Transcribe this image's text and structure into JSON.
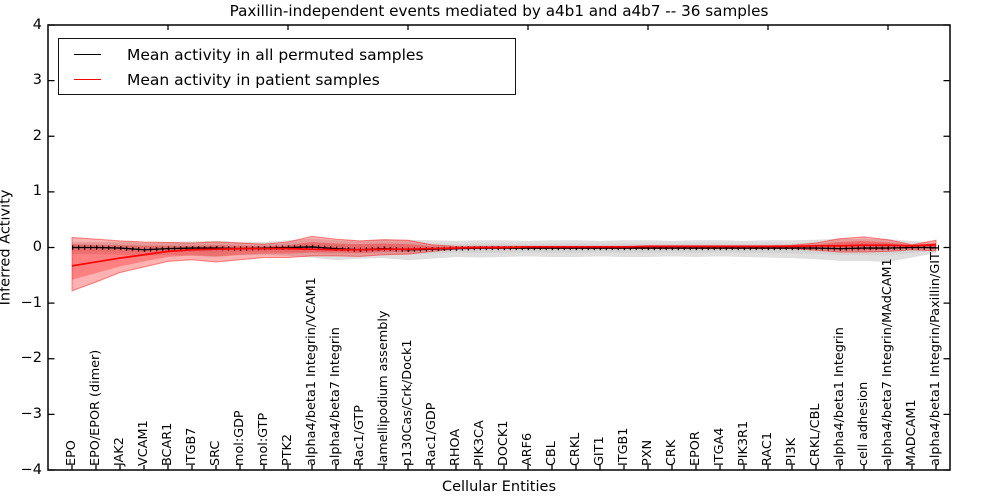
{
  "figure": {
    "background": "#ffffff"
  },
  "chart_data": {
    "type": "line",
    "title": "Paxillin-independent events mediated by a4b1 and a4b7 -- 36 samples",
    "xlabel": "Cellular Entities",
    "ylabel": "Inferred Activity",
    "ylim": [
      -4,
      4
    ],
    "yticks": [
      4,
      3,
      2,
      1,
      0,
      -1,
      -2,
      -3,
      -4
    ],
    "grid": false,
    "legend_position": "upper left",
    "legend": [
      {
        "label": "Mean activity in all permuted samples",
        "color": "#000000"
      },
      {
        "label": "Mean activity in patient samples",
        "color": "#ff0000"
      }
    ],
    "categories": [
      "EPO",
      "EPO/EPOR (dimer)",
      "JAK2",
      "VCAM1",
      "BCAR1",
      "ITGB7",
      "SRC",
      "mol:GDP",
      "mol:GTP",
      "PTK2",
      "alpha4/beta1 Integrin/VCAM1",
      "alpha4/beta7 Integrin",
      "Rac1/GTP",
      "lamellipodium assembly",
      "p130Cas/Crk/Dock1",
      "Rac1/GDP",
      "RHOA",
      "PIK3CA",
      "DOCK1",
      "ARF6",
      "CBL",
      "CRKL",
      "GIT1",
      "ITGB1",
      "PXN",
      "CRK",
      "EPOR",
      "ITGA4",
      "PIK3R1",
      "RAC1",
      "PI3K",
      "CRKL/CBL",
      "alpha4/beta1 Integrin",
      "cell adhesion",
      "alpha4/beta7 Integrin/MAdCAM1",
      "MADCAM1",
      "alpha4/beta1 Integrin/Paxillin/GIT1"
    ],
    "series": [
      {
        "name": "Mean activity in all permuted samples",
        "color": "#000000",
        "band_color": "#bbbbbb",
        "values": [
          0.0,
          0.0,
          -0.01,
          -0.04,
          -0.02,
          -0.01,
          -0.01,
          -0.02,
          -0.01,
          0.0,
          0.01,
          -0.02,
          -0.04,
          -0.02,
          -0.04,
          -0.03,
          -0.02,
          -0.01,
          -0.01,
          -0.01,
          -0.01,
          -0.01,
          -0.01,
          -0.01,
          -0.01,
          -0.01,
          -0.01,
          -0.01,
          -0.01,
          -0.01,
          -0.01,
          -0.01,
          -0.02,
          -0.01,
          -0.01,
          0.0,
          0.0
        ],
        "band_hi": [
          0.1,
          0.1,
          0.1,
          0.09,
          0.1,
          0.11,
          0.12,
          0.1,
          0.1,
          0.13,
          0.16,
          0.13,
          0.12,
          0.15,
          0.14,
          0.13,
          0.12,
          0.13,
          0.13,
          0.12,
          0.13,
          0.13,
          0.12,
          0.13,
          0.13,
          0.12,
          0.13,
          0.13,
          0.12,
          0.13,
          0.13,
          0.14,
          0.16,
          0.15,
          0.15,
          0.12,
          0.08
        ],
        "band_lo": [
          -0.12,
          -0.12,
          -0.13,
          -0.15,
          -0.13,
          -0.15,
          -0.17,
          -0.14,
          -0.13,
          -0.15,
          -0.18,
          -0.23,
          -0.2,
          -0.19,
          -0.23,
          -0.2,
          -0.17,
          -0.18,
          -0.17,
          -0.16,
          -0.17,
          -0.17,
          -0.16,
          -0.17,
          -0.17,
          -0.16,
          -0.17,
          -0.16,
          -0.17,
          -0.18,
          -0.19,
          -0.21,
          -0.24,
          -0.24,
          -0.26,
          -0.18,
          -0.1
        ]
      },
      {
        "name": "Mean activity in patient samples",
        "color": "#ff0000",
        "band_color": "#ff9999",
        "values": [
          -0.33,
          -0.26,
          -0.19,
          -0.13,
          -0.07,
          -0.04,
          -0.03,
          -0.02,
          -0.02,
          -0.02,
          -0.03,
          -0.04,
          -0.04,
          -0.03,
          -0.03,
          -0.02,
          -0.01,
          0.0,
          0.0,
          0.01,
          0.01,
          0.01,
          0.01,
          0.01,
          0.02,
          0.02,
          0.02,
          0.02,
          0.02,
          0.02,
          0.02,
          0.03,
          0.03,
          0.04,
          0.04,
          0.03,
          0.05
        ],
        "band_hi": [
          0.18,
          0.15,
          0.12,
          0.1,
          0.09,
          0.08,
          0.1,
          0.08,
          0.06,
          0.1,
          0.2,
          0.15,
          0.12,
          0.14,
          0.13,
          0.05,
          0.02,
          0.02,
          0.02,
          0.02,
          0.02,
          0.02,
          0.02,
          0.02,
          0.03,
          0.03,
          0.03,
          0.03,
          0.03,
          0.03,
          0.04,
          0.08,
          0.16,
          0.19,
          0.14,
          0.05,
          0.13
        ],
        "band_lo": [
          -0.78,
          -0.62,
          -0.45,
          -0.35,
          -0.25,
          -0.22,
          -0.26,
          -0.22,
          -0.18,
          -0.18,
          -0.15,
          -0.15,
          -0.16,
          -0.13,
          -0.12,
          -0.07,
          -0.03,
          -0.02,
          -0.02,
          -0.02,
          -0.02,
          -0.02,
          -0.02,
          -0.02,
          -0.02,
          -0.02,
          -0.02,
          -0.02,
          -0.02,
          -0.02,
          -0.02,
          -0.05,
          -0.08,
          -0.08,
          -0.07,
          -0.04,
          -0.06
        ],
        "inner_hi": [
          0.06,
          0.05,
          0.04,
          0.03,
          0.03,
          0.03,
          0.04,
          0.03,
          0.02,
          0.04,
          0.1,
          0.07,
          0.06,
          0.07,
          0.06,
          0.02,
          0.01,
          0.01,
          0.01,
          0.01,
          0.01,
          0.01,
          0.01,
          0.01,
          0.02,
          0.02,
          0.02,
          0.02,
          0.02,
          0.02,
          0.02,
          0.05,
          0.1,
          0.12,
          0.09,
          0.04,
          0.08
        ],
        "inner_lo": [
          -0.58,
          -0.46,
          -0.34,
          -0.25,
          -0.17,
          -0.14,
          -0.16,
          -0.13,
          -0.11,
          -0.11,
          -0.09,
          -0.09,
          -0.1,
          -0.08,
          -0.08,
          -0.04,
          -0.02,
          -0.01,
          -0.01,
          -0.01,
          -0.01,
          -0.01,
          -0.01,
          -0.01,
          -0.01,
          -0.01,
          -0.01,
          -0.01,
          -0.01,
          -0.01,
          -0.01,
          -0.03,
          -0.05,
          -0.05,
          -0.04,
          -0.02,
          -0.03
        ]
      }
    ]
  }
}
